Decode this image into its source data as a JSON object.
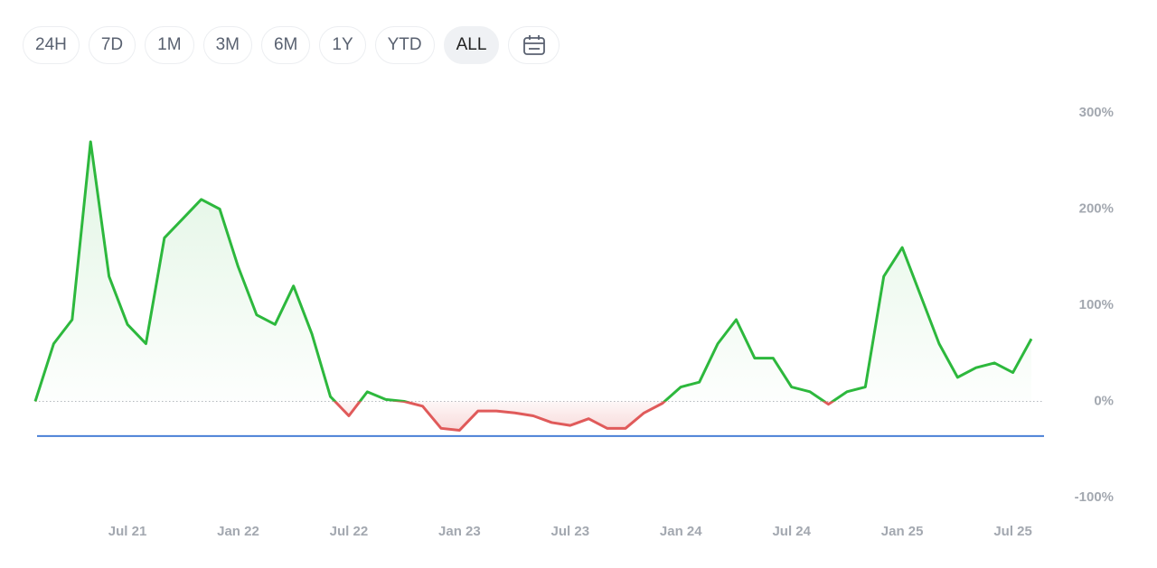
{
  "buttons": [
    "24H",
    "7D",
    "1M",
    "3M",
    "6M",
    "1Y",
    "YTD",
    "ALL"
  ],
  "selected_index": 7,
  "chart_data": {
    "type": "line",
    "x": [
      "2021-02",
      "2021-03",
      "2021-04",
      "2021-05",
      "2021-06",
      "2021-07",
      "2021-08",
      "2021-09",
      "2021-10",
      "2021-11",
      "2021-12",
      "2022-01",
      "2022-02",
      "2022-03",
      "2022-04",
      "2022-05",
      "2022-06",
      "2022-07",
      "2022-08",
      "2022-09",
      "2022-10",
      "2022-11",
      "2022-12",
      "2023-01",
      "2023-02",
      "2023-03",
      "2023-04",
      "2023-05",
      "2023-06",
      "2023-07",
      "2023-08",
      "2023-09",
      "2023-10",
      "2023-11",
      "2023-12",
      "2024-01",
      "2024-02",
      "2024-03",
      "2024-04",
      "2024-05",
      "2024-06",
      "2024-07",
      "2024-08",
      "2024-09",
      "2024-10",
      "2024-11",
      "2024-12",
      "2025-01",
      "2025-02",
      "2025-03",
      "2025-04",
      "2025-05",
      "2025-06",
      "2025-07",
      "2025-08"
    ],
    "series": [
      {
        "color": "#2db83d",
        "negative_color": "#e05a5a",
        "values": [
          0,
          60,
          85,
          270,
          130,
          80,
          60,
          170,
          190,
          210,
          200,
          140,
          90,
          80,
          120,
          70,
          5,
          -15,
          10,
          2,
          0,
          -5,
          -28,
          -30,
          -10,
          -10,
          -12,
          -15,
          -22,
          -25,
          -18,
          -28,
          -28,
          -12,
          -2,
          15,
          20,
          60,
          85,
          45,
          45,
          15,
          10,
          -3,
          10,
          15,
          130,
          160,
          110,
          60,
          25,
          35,
          40,
          30,
          65
        ]
      }
    ],
    "xlim": [
      "2021-02",
      "2025-08"
    ],
    "xticks": [
      {
        "value": "2021-07",
        "label": "Jul 21"
      },
      {
        "value": "2022-01",
        "label": "Jan 22"
      },
      {
        "value": "2022-07",
        "label": "Jul 22"
      },
      {
        "value": "2023-01",
        "label": "Jan 23"
      },
      {
        "value": "2023-07",
        "label": "Jul 23"
      },
      {
        "value": "2024-01",
        "label": "Jan 24"
      },
      {
        "value": "2024-07",
        "label": "Jul 24"
      },
      {
        "value": "2025-01",
        "label": "Jan 25"
      },
      {
        "value": "2025-07",
        "label": "Jul 25"
      }
    ],
    "ylim": [
      -100,
      300
    ],
    "yticks": [
      {
        "value": 300,
        "label": "300%"
      },
      {
        "value": 200,
        "label": "200%"
      },
      {
        "value": 100,
        "label": "100%"
      },
      {
        "value": 0,
        "label": "0%"
      },
      {
        "value": -100,
        "label": "-100%"
      }
    ],
    "zero_line": "dotted",
    "reference_line": {
      "value": -36,
      "color": "#4a7fd6"
    }
  }
}
